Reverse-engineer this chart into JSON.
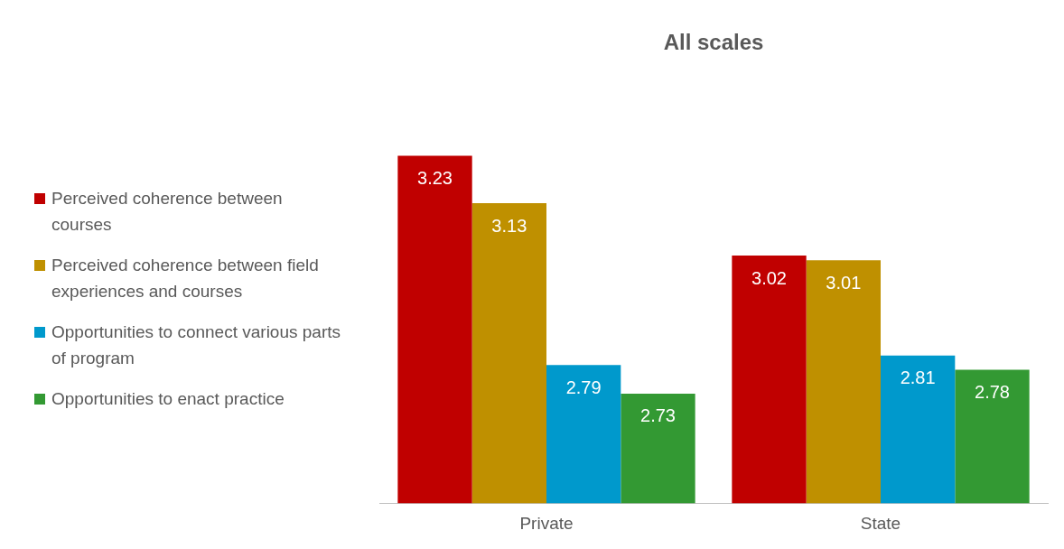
{
  "chart_data": {
    "type": "bar",
    "title": "All scales",
    "categories": [
      "Private",
      "State"
    ],
    "series": [
      {
        "name": "Perceived coherence between courses",
        "color": "#c00000",
        "values": [
          3.23,
          3.02
        ]
      },
      {
        "name": "Perceived coherence between field experiences and courses",
        "color": "#bf9000",
        "values": [
          3.13,
          3.01
        ]
      },
      {
        "name": "Opportunities to connect various parts of program",
        "color": "#0099cc",
        "values": [
          2.79,
          2.81
        ]
      },
      {
        "name": "Opportunities to enact practice",
        "color": "#339933",
        "values": [
          2.73,
          2.78
        ]
      }
    ],
    "tick_labels": "x",
    "grid": false,
    "legend": "left",
    "data_labels": true
  }
}
